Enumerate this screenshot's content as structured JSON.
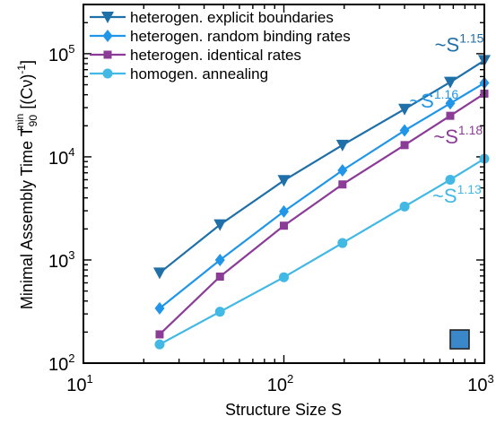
{
  "chart_data": {
    "type": "line",
    "xlabel": "Structure Size S",
    "ylabel": "Minimal Assembly Time T",
    "ylabel_sub": "90",
    "ylabel_sup": "min",
    "ylabel_units": "[(Cν)",
    "ylabel_units_sup": "-1",
    "ylabel_units_close": "]",
    "xscale": "log",
    "yscale": "log",
    "xlim": [
      10,
      1000
    ],
    "ylim": [
      100,
      300000
    ],
    "xticks": [
      {
        "value": 10,
        "base": "10",
        "exp": "1"
      },
      {
        "value": 100,
        "base": "10",
        "exp": "2"
      },
      {
        "value": 1000,
        "base": "10",
        "exp": "3"
      }
    ],
    "yticks": [
      {
        "value": 100,
        "base": "10",
        "exp": "2"
      },
      {
        "value": 1000,
        "base": "10",
        "exp": "3"
      },
      {
        "value": 10000,
        "base": "10",
        "exp": "4"
      },
      {
        "value": 100000,
        "base": "10",
        "exp": "5"
      }
    ],
    "legend_position": "top-left",
    "series": [
      {
        "name": "heterogen. explicit boundaries",
        "color": "#1f6fa8",
        "marker": "triangle-down",
        "points": [
          [
            24,
            750
          ],
          [
            48,
            2200
          ],
          [
            100,
            5900
          ],
          [
            196,
            13000
          ],
          [
            400,
            29000
          ],
          [
            676,
            53000
          ],
          [
            1000,
            86000
          ]
        ],
        "annotation": {
          "base": "~S",
          "exp": "1.15",
          "x": 750,
          "y": 105000
        }
      },
      {
        "name": "heterogen. random binding rates",
        "color": "#2196e8",
        "marker": "diamond",
        "points": [
          [
            24,
            340
          ],
          [
            48,
            1000
          ],
          [
            100,
            2950
          ],
          [
            196,
            7400
          ],
          [
            400,
            18000
          ],
          [
            676,
            33000
          ],
          [
            1000,
            52000
          ]
        ],
        "annotation": {
          "base": "~S",
          "exp": "1.16",
          "x": 560,
          "y": 30000
        }
      },
      {
        "name": "heterogen. identical rates",
        "color": "#8b3c96",
        "marker": "square",
        "points": [
          [
            24,
            190
          ],
          [
            48,
            690
          ],
          [
            100,
            2150
          ],
          [
            196,
            5400
          ],
          [
            400,
            13000
          ],
          [
            676,
            25000
          ],
          [
            1000,
            41000
          ]
        ],
        "annotation": {
          "base": "~S",
          "exp": "1.18",
          "x": 740,
          "y": 13500
        }
      },
      {
        "name": "homogen. annealing",
        "color": "#42b8e4",
        "marker": "circle",
        "points": [
          [
            24,
            152
          ],
          [
            48,
            315
          ],
          [
            100,
            680
          ],
          [
            196,
            1460
          ],
          [
            400,
            3300
          ],
          [
            676,
            6000
          ],
          [
            1000,
            9600
          ]
        ],
        "annotation": {
          "base": "~S",
          "exp": "1.13",
          "x": 730,
          "y": 3600
        }
      }
    ]
  }
}
